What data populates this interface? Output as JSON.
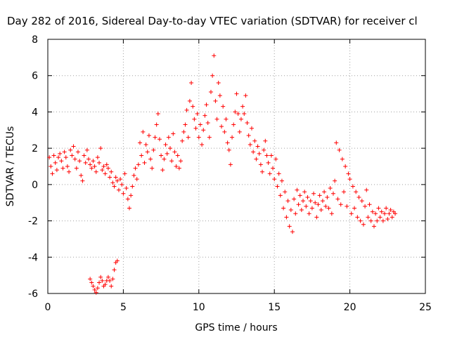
{
  "chart_data": {
    "type": "scatter",
    "title": "Day 282 of 2016, Sidereal Day-to-day VTEC variation (SDTVAR) for receiver cl",
    "xlabel": "GPS time / hours",
    "ylabel": "SDTVAR / TECUs",
    "xlim": [
      0,
      25
    ],
    "ylim": [
      -6,
      8
    ],
    "xticks": [
      0,
      5,
      10,
      15,
      20,
      25
    ],
    "yticks": [
      -6,
      -4,
      -2,
      0,
      2,
      4,
      6,
      8
    ],
    "grid": true,
    "marker": "+",
    "color": "#ff0000",
    "series": [
      {
        "name": "SDTVAR",
        "points": [
          [
            0.1,
            1.5
          ],
          [
            0.2,
            1.0
          ],
          [
            0.3,
            0.6
          ],
          [
            0.4,
            1.6
          ],
          [
            0.5,
            1.2
          ],
          [
            0.6,
            0.8
          ],
          [
            0.7,
            1.5
          ],
          [
            0.8,
            1.7
          ],
          [
            0.9,
            1.3
          ],
          [
            1.0,
            0.9
          ],
          [
            1.1,
            1.8
          ],
          [
            1.2,
            1.5
          ],
          [
            1.3,
            1.0
          ],
          [
            1.4,
            0.7
          ],
          [
            1.5,
            1.9
          ],
          [
            1.6,
            1.6
          ],
          [
            1.7,
            2.1
          ],
          [
            1.8,
            1.4
          ],
          [
            1.9,
            0.9
          ],
          [
            2.0,
            1.8
          ],
          [
            2.1,
            1.3
          ],
          [
            2.2,
            0.5
          ],
          [
            2.3,
            0.2
          ],
          [
            2.4,
            1.6
          ],
          [
            2.5,
            1.2
          ],
          [
            2.6,
            1.9
          ],
          [
            2.7,
            1.4
          ],
          [
            2.8,
            1.1
          ],
          [
            2.9,
            0.9
          ],
          [
            3.0,
            1.3
          ],
          [
            3.1,
            1.0
          ],
          [
            3.2,
            0.7
          ],
          [
            3.3,
            1.5
          ],
          [
            3.4,
            1.2
          ],
          [
            3.5,
            2.0
          ],
          [
            3.6,
            0.8
          ],
          [
            3.7,
            1.0
          ],
          [
            3.8,
            0.6
          ],
          [
            3.9,
            1.1
          ],
          [
            4.0,
            0.9
          ],
          [
            4.1,
            0.4
          ],
          [
            4.2,
            0.7
          ],
          [
            4.3,
            0.1
          ],
          [
            4.4,
            -0.1
          ],
          [
            4.5,
            0.4
          ],
          [
            4.6,
            0.2
          ],
          [
            4.7,
            -0.3
          ],
          [
            4.8,
            0.3
          ],
          [
            4.9,
            0.0
          ],
          [
            5.0,
            -0.5
          ],
          [
            5.1,
            0.6
          ],
          [
            5.2,
            -0.2
          ],
          [
            5.3,
            -0.8
          ],
          [
            5.4,
            -1.3
          ],
          [
            5.5,
            -0.6
          ],
          [
            5.6,
            -0.1
          ],
          [
            5.7,
            0.5
          ],
          [
            5.8,
            0.9
          ],
          [
            5.9,
            0.3
          ],
          [
            6.0,
            1.1
          ],
          [
            6.1,
            2.3
          ],
          [
            6.2,
            1.6
          ],
          [
            6.3,
            2.9
          ],
          [
            6.4,
            1.2
          ],
          [
            6.5,
            2.2
          ],
          [
            6.6,
            1.8
          ],
          [
            6.7,
            2.7
          ],
          [
            6.8,
            1.4
          ],
          [
            6.9,
            0.9
          ],
          [
            7.0,
            1.9
          ],
          [
            7.1,
            2.6
          ],
          [
            7.2,
            3.3
          ],
          [
            7.3,
            3.9
          ],
          [
            7.4,
            2.5
          ],
          [
            7.5,
            1.6
          ],
          [
            7.6,
            0.8
          ],
          [
            7.7,
            1.4
          ],
          [
            7.8,
            2.2
          ],
          [
            7.9,
            1.7
          ],
          [
            8.0,
            2.6
          ],
          [
            8.1,
            2.0
          ],
          [
            8.2,
            1.3
          ],
          [
            8.3,
            2.8
          ],
          [
            8.4,
            1.8
          ],
          [
            8.5,
            1.0
          ],
          [
            8.6,
            1.6
          ],
          [
            8.7,
            0.9
          ],
          [
            8.8,
            1.3
          ],
          [
            8.9,
            2.4
          ],
          [
            9.0,
            2.9
          ],
          [
            9.1,
            3.3
          ],
          [
            9.2,
            4.1
          ],
          [
            9.3,
            2.6
          ],
          [
            9.4,
            4.6
          ],
          [
            9.5,
            5.6
          ],
          [
            9.6,
            4.3
          ],
          [
            9.7,
            3.6
          ],
          [
            9.8,
            3.1
          ],
          [
            9.9,
            3.9
          ],
          [
            10.0,
            2.6
          ],
          [
            10.1,
            3.3
          ],
          [
            10.2,
            2.2
          ],
          [
            10.3,
            3.0
          ],
          [
            10.4,
            3.8
          ],
          [
            10.5,
            4.4
          ],
          [
            10.6,
            3.4
          ],
          [
            10.7,
            2.6
          ],
          [
            10.8,
            5.1
          ],
          [
            10.9,
            6.0
          ],
          [
            11.0,
            7.1
          ],
          [
            11.1,
            4.6
          ],
          [
            11.2,
            3.6
          ],
          [
            11.3,
            5.6
          ],
          [
            11.4,
            4.9
          ],
          [
            11.5,
            3.2
          ],
          [
            11.6,
            4.3
          ],
          [
            11.7,
            2.9
          ],
          [
            11.8,
            3.6
          ],
          [
            11.9,
            2.3
          ],
          [
            12.0,
            1.9
          ],
          [
            12.1,
            1.1
          ],
          [
            12.2,
            2.6
          ],
          [
            12.3,
            3.3
          ],
          [
            12.4,
            4.0
          ],
          [
            12.5,
            5.0
          ],
          [
            12.6,
            3.9
          ],
          [
            12.7,
            2.9
          ],
          [
            12.8,
            3.6
          ],
          [
            12.9,
            4.3
          ],
          [
            13.0,
            3.9
          ],
          [
            13.1,
            4.9
          ],
          [
            13.2,
            3.4
          ],
          [
            13.3,
            2.7
          ],
          [
            13.4,
            2.2
          ],
          [
            13.5,
            3.1
          ],
          [
            13.6,
            1.8
          ],
          [
            13.7,
            2.4
          ],
          [
            13.8,
            1.4
          ],
          [
            13.9,
            2.1
          ],
          [
            14.0,
            1.7
          ],
          [
            14.1,
            1.1
          ],
          [
            14.2,
            0.7
          ],
          [
            14.3,
            1.9
          ],
          [
            14.4,
            2.4
          ],
          [
            14.5,
            1.6
          ],
          [
            14.6,
            1.2
          ],
          [
            14.7,
            0.6
          ],
          [
            14.8,
            1.6
          ],
          [
            14.9,
            0.9
          ],
          [
            15.0,
            0.3
          ],
          [
            15.1,
            1.4
          ],
          [
            15.2,
            -0.1
          ],
          [
            15.3,
            0.6
          ],
          [
            15.4,
            -0.6
          ],
          [
            15.5,
            0.2
          ],
          [
            15.6,
            -1.3
          ],
          [
            15.7,
            -0.4
          ],
          [
            15.8,
            -1.8
          ],
          [
            15.9,
            -0.9
          ],
          [
            16.0,
            -2.3
          ],
          [
            16.1,
            -1.4
          ],
          [
            16.2,
            -2.6
          ],
          [
            16.3,
            -0.8
          ],
          [
            16.4,
            -1.6
          ],
          [
            16.5,
            -0.3
          ],
          [
            16.6,
            -1.1
          ],
          [
            16.7,
            -0.6
          ],
          [
            16.8,
            -1.4
          ],
          [
            16.9,
            -0.9
          ],
          [
            17.0,
            -0.4
          ],
          [
            17.1,
            -1.2
          ],
          [
            17.2,
            -0.7
          ],
          [
            17.3,
            -1.6
          ],
          [
            17.4,
            -0.9
          ],
          [
            17.5,
            -1.3
          ],
          [
            17.6,
            -0.5
          ],
          [
            17.7,
            -1.0
          ],
          [
            17.8,
            -1.8
          ],
          [
            17.9,
            -1.1
          ],
          [
            18.0,
            -0.6
          ],
          [
            18.1,
            -1.4
          ],
          [
            18.2,
            -0.9
          ],
          [
            18.3,
            -0.4
          ],
          [
            18.4,
            -1.2
          ],
          [
            18.5,
            -0.7
          ],
          [
            18.6,
            -1.3
          ],
          [
            18.7,
            -0.2
          ],
          [
            18.8,
            -1.6
          ],
          [
            18.9,
            -0.5
          ],
          [
            19.0,
            0.2
          ],
          [
            19.1,
            2.3
          ],
          [
            19.2,
            -0.8
          ],
          [
            19.3,
            1.9
          ],
          [
            19.4,
            -1.1
          ],
          [
            19.5,
            1.4
          ],
          [
            19.6,
            -0.4
          ],
          [
            19.7,
            1.0
          ],
          [
            19.8,
            -1.2
          ],
          [
            19.9,
            0.6
          ],
          [
            20.0,
            0.3
          ],
          [
            20.1,
            -1.6
          ],
          [
            20.2,
            -0.1
          ],
          [
            20.3,
            -1.3
          ],
          [
            20.4,
            -0.4
          ],
          [
            20.5,
            -1.8
          ],
          [
            20.6,
            -0.7
          ],
          [
            20.7,
            -2.0
          ],
          [
            20.8,
            -0.9
          ],
          [
            20.9,
            -2.2
          ],
          [
            21.0,
            -1.2
          ],
          [
            21.1,
            -0.3
          ],
          [
            21.2,
            -1.8
          ],
          [
            21.3,
            -1.1
          ],
          [
            21.4,
            -2.0
          ],
          [
            21.5,
            -1.5
          ],
          [
            21.6,
            -2.3
          ],
          [
            21.7,
            -1.6
          ],
          [
            21.8,
            -2.0
          ],
          [
            21.9,
            -1.3
          ],
          [
            22.0,
            -1.8
          ],
          [
            22.1,
            -1.5
          ],
          [
            22.2,
            -2.0
          ],
          [
            22.3,
            -1.6
          ],
          [
            22.4,
            -1.3
          ],
          [
            22.5,
            -1.9
          ],
          [
            22.6,
            -1.6
          ],
          [
            22.7,
            -1.4
          ],
          [
            22.8,
            -1.8
          ],
          [
            22.9,
            -1.5
          ],
          [
            23.0,
            -1.6
          ],
          [
            2.8,
            -5.2
          ],
          [
            2.9,
            -5.4
          ],
          [
            3.0,
            -5.6
          ],
          [
            3.1,
            -5.8
          ],
          [
            3.2,
            -5.95
          ],
          [
            3.3,
            -5.7
          ],
          [
            3.4,
            -5.4
          ],
          [
            3.5,
            -5.1
          ],
          [
            3.6,
            -5.3
          ],
          [
            3.7,
            -5.6
          ],
          [
            3.8,
            -5.5
          ],
          [
            3.9,
            -5.3
          ],
          [
            4.0,
            -5.1
          ],
          [
            4.1,
            -5.3
          ],
          [
            4.2,
            -5.6
          ],
          [
            4.3,
            -5.2
          ],
          [
            4.4,
            -4.7
          ],
          [
            4.5,
            -4.3
          ],
          [
            4.6,
            -4.2
          ]
        ]
      }
    ]
  }
}
